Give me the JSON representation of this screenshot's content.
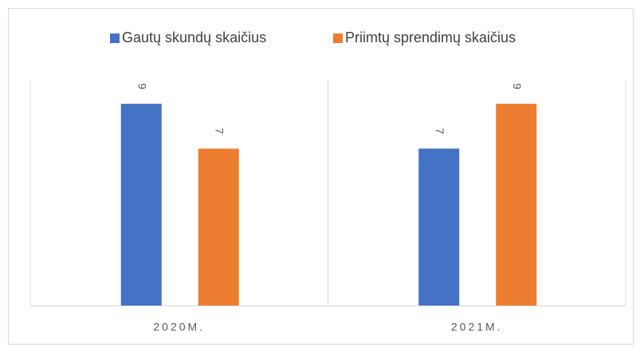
{
  "chart_data": {
    "type": "bar",
    "categories": [
      "2020M.",
      "2021M."
    ],
    "series": [
      {
        "name": "Gautų skundų skaičius",
        "color": "#4472c4",
        "values": [
          9,
          7
        ]
      },
      {
        "name": "Priimtų sprendimų skaičius",
        "color": "#ed7d31",
        "values": [
          7,
          9
        ]
      }
    ],
    "ylim": [
      0,
      10
    ],
    "legend": "top",
    "grid": false
  }
}
